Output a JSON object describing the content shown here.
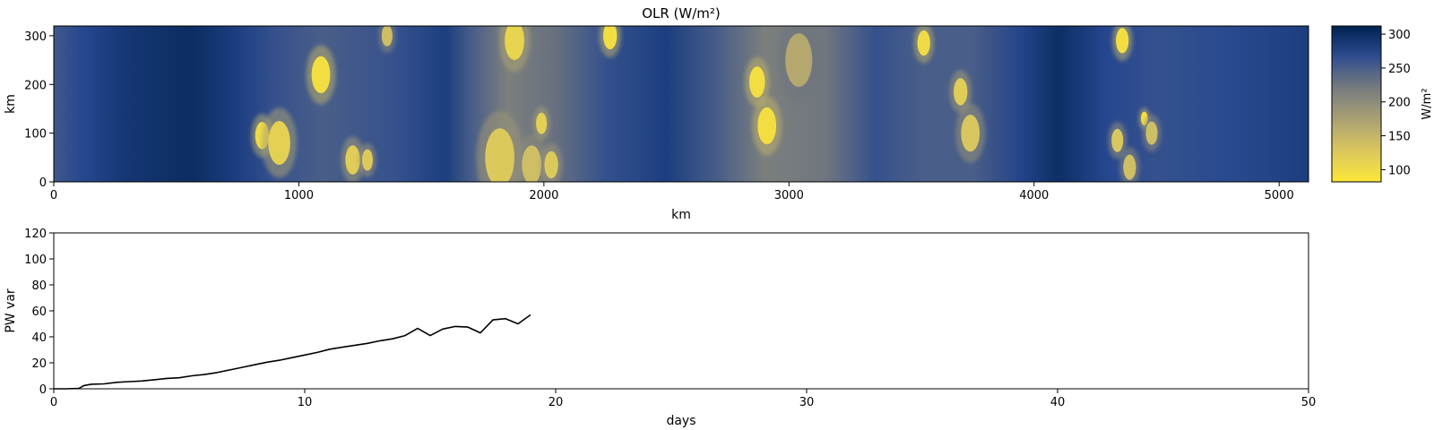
{
  "chart_data": [
    {
      "type": "heatmap",
      "title": "OLR (W/m²)",
      "xlabel": "km",
      "ylabel": "km",
      "xlim": [
        0,
        5120
      ],
      "ylim": [
        0,
        320
      ],
      "xticks": [
        0,
        1000,
        2000,
        3000,
        4000,
        5000
      ],
      "yticks": [
        0,
        100,
        200,
        300
      ],
      "colormap": "cividis_r",
      "colorbar": {
        "label": "W/m²",
        "range": [
          82,
          312
        ],
        "ticks": [
          100,
          150,
          200,
          250,
          300
        ]
      },
      "background_bands": [
        {
          "x": 0,
          "value": 255
        },
        {
          "x": 120,
          "value": 272
        },
        {
          "x": 300,
          "value": 290
        },
        {
          "x": 560,
          "value": 300
        },
        {
          "x": 760,
          "value": 280
        },
        {
          "x": 900,
          "value": 262
        },
        {
          "x": 1100,
          "value": 250
        },
        {
          "x": 1400,
          "value": 262
        },
        {
          "x": 1600,
          "value": 282
        },
        {
          "x": 1700,
          "value": 252
        },
        {
          "x": 1850,
          "value": 215
        },
        {
          "x": 2050,
          "value": 232
        },
        {
          "x": 2250,
          "value": 262
        },
        {
          "x": 2500,
          "value": 282
        },
        {
          "x": 2700,
          "value": 252
        },
        {
          "x": 2900,
          "value": 215
        },
        {
          "x": 3150,
          "value": 225
        },
        {
          "x": 3350,
          "value": 262
        },
        {
          "x": 3550,
          "value": 250
        },
        {
          "x": 3750,
          "value": 250
        },
        {
          "x": 3950,
          "value": 275
        },
        {
          "x": 4100,
          "value": 298
        },
        {
          "x": 4300,
          "value": 272
        },
        {
          "x": 4500,
          "value": 262
        },
        {
          "x": 4750,
          "value": 268
        },
        {
          "x": 5120,
          "value": 282
        }
      ],
      "cells": [
        {
          "x": 850,
          "y": 95,
          "r": 28,
          "value": 100
        },
        {
          "x": 920,
          "y": 80,
          "r": 45,
          "value": 115
        },
        {
          "x": 1090,
          "y": 220,
          "r": 38,
          "value": 95
        },
        {
          "x": 1220,
          "y": 45,
          "r": 30,
          "value": 120
        },
        {
          "x": 1280,
          "y": 45,
          "r": 22,
          "value": 125
        },
        {
          "x": 1360,
          "y": 300,
          "r": 22,
          "value": 140
        },
        {
          "x": 1820,
          "y": 50,
          "r": 60,
          "value": 125
        },
        {
          "x": 1880,
          "y": 290,
          "r": 40,
          "value": 110
        },
        {
          "x": 1950,
          "y": 35,
          "r": 40,
          "value": 140
        },
        {
          "x": 1990,
          "y": 120,
          "r": 22,
          "value": 115
        },
        {
          "x": 2030,
          "y": 35,
          "r": 28,
          "value": 125
        },
        {
          "x": 2270,
          "y": 300,
          "r": 28,
          "value": 95
        },
        {
          "x": 2870,
          "y": 205,
          "r": 32,
          "value": 95
        },
        {
          "x": 2910,
          "y": 115,
          "r": 38,
          "value": 95
        },
        {
          "x": 3040,
          "y": 250,
          "r": 55,
          "value": 165
        },
        {
          "x": 3550,
          "y": 285,
          "r": 26,
          "value": 100
        },
        {
          "x": 3700,
          "y": 185,
          "r": 28,
          "value": 120
        },
        {
          "x": 3740,
          "y": 100,
          "r": 38,
          "value": 130
        },
        {
          "x": 4360,
          "y": 290,
          "r": 26,
          "value": 95
        },
        {
          "x": 4450,
          "y": 130,
          "r": 14,
          "value": 90
        },
        {
          "x": 4340,
          "y": 85,
          "r": 24,
          "value": 130
        },
        {
          "x": 4390,
          "y": 30,
          "r": 26,
          "value": 140
        },
        {
          "x": 4480,
          "y": 100,
          "r": 24,
          "value": 140
        }
      ]
    },
    {
      "type": "line",
      "xlabel": "days",
      "ylabel": "PW var",
      "xlim": [
        0,
        50
      ],
      "ylim": [
        0,
        120
      ],
      "xticks": [
        0,
        10,
        20,
        30,
        40,
        50
      ],
      "yticks": [
        0,
        20,
        40,
        60,
        80,
        100,
        120
      ],
      "series": [
        {
          "x": [
            0,
            0.5,
            1.0,
            1.2,
            1.5,
            2.0,
            2.5,
            3.0,
            3.5,
            4.0,
            4.5,
            5.0,
            5.5,
            6.0,
            6.5,
            7.0,
            7.5,
            8.0,
            8.5,
            9.0,
            9.5,
            10.0,
            10.5,
            11.0,
            11.5,
            12.0,
            12.5,
            13.0,
            13.5,
            14.0,
            14.5,
            15.0,
            15.5,
            16.0,
            16.5,
            17.0,
            17.5,
            18.0,
            18.5,
            19.0
          ],
          "y": [
            0,
            0,
            0.3,
            2.5,
            3.5,
            3.8,
            5.0,
            5.5,
            6.0,
            7.0,
            8.0,
            8.5,
            10.0,
            11.0,
            12.5,
            14.5,
            16.5,
            18.5,
            20.5,
            22.0,
            24.0,
            26.0,
            28.0,
            30.5,
            32.0,
            33.5,
            35.0,
            37.0,
            38.5,
            41.0,
            46.5,
            41.0,
            46.0,
            48.0,
            47.5,
            43.0,
            53.0,
            54.0,
            50.0,
            57.0
          ]
        }
      ]
    }
  ]
}
